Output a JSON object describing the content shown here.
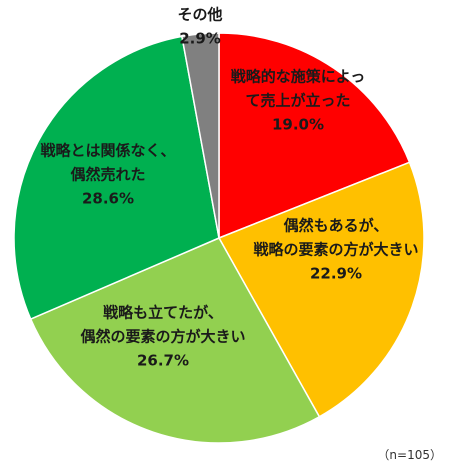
{
  "chart_data": {
    "type": "pie",
    "slices": [
      {
        "label_lines": [
          "戦略的な施策によっ",
          "て売上が立った"
        ],
        "value": 19.0,
        "value_label": "19.0%",
        "color": "#ff0000"
      },
      {
        "label_lines": [
          "偶然もあるが、",
          "戦略の要素の方が大きい"
        ],
        "value": 22.9,
        "value_label": "22.9%",
        "color": "#ffc000"
      },
      {
        "label_lines": [
          "戦略も立てたが、",
          "偶然の要素の方が大きい"
        ],
        "value": 26.7,
        "value_label": "26.7%",
        "color": "#92d050"
      },
      {
        "label_lines": [
          "戦略とは関係なく、",
          "偶然売れた"
        ],
        "value": 28.6,
        "value_label": "28.6%",
        "color": "#00b050"
      },
      {
        "label_lines": [
          "その他"
        ],
        "value": 2.9,
        "value_label": "2.9%",
        "color": "#808080"
      }
    ],
    "start": "12 o'clock",
    "direction": "clockwise"
  },
  "note": "（n=105）"
}
